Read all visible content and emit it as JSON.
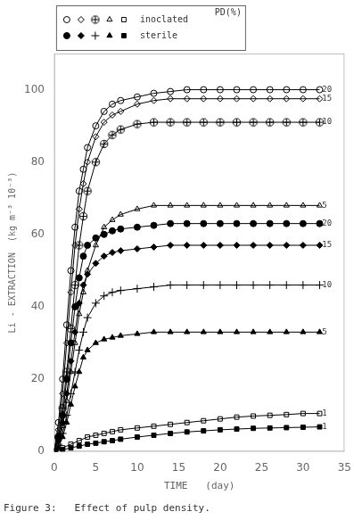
{
  "chart_data": {
    "type": "line",
    "xlabel": "TIME   (day)",
    "ylabel": "Li - EXTRACTION  (kg m⁻³ 10⁻³)",
    "caption": "Figure 3:   Effect of pulp density.",
    "xlim": [
      0,
      35
    ],
    "ylim": [
      0,
      110
    ],
    "xticks": [
      0,
      5,
      10,
      15,
      20,
      25,
      30,
      35
    ],
    "yticks": [
      0,
      20,
      40,
      60,
      80,
      100
    ],
    "grid": false,
    "legend": "upper left",
    "legend_title": "PD(%)",
    "color": "#000000",
    "series": [
      {
        "name": "inoclated",
        "marker": "circle-open",
        "x": [
          0,
          0.5,
          1,
          1.5,
          2,
          2.5,
          3,
          3.5,
          4,
          5,
          6,
          7,
          8,
          10,
          12,
          14,
          16,
          18,
          20,
          22,
          24,
          26,
          28,
          30,
          32
        ],
        "values": [
          0,
          8,
          20,
          35,
          50,
          62,
          72,
          78,
          84,
          90,
          94,
          96,
          97,
          98,
          99,
          99.5,
          100,
          100,
          100,
          100,
          100,
          100,
          100,
          100,
          100
        ]
      },
      {
        "name": "inoclated",
        "marker": "diamond-open",
        "x": [
          0,
          0.5,
          1,
          1.5,
          2,
          2.5,
          3,
          3.5,
          4,
          5,
          6,
          7,
          8,
          10,
          12,
          14,
          16,
          18,
          20,
          22,
          24,
          26,
          28,
          30,
          32
        ],
        "values": [
          0,
          6,
          16,
          30,
          44,
          57,
          67,
          74,
          80,
          87,
          91,
          93,
          94,
          96,
          97,
          97.5,
          97.5,
          97.5,
          97.5,
          97.5,
          97.5,
          97.5,
          97.5,
          97.5,
          97.5
        ]
      },
      {
        "name": "inoclated",
        "marker": "circle-plus",
        "x": [
          0,
          0.5,
          1,
          1.5,
          2,
          2.5,
          3,
          3.5,
          4,
          5,
          6,
          7,
          8,
          10,
          12,
          14,
          16,
          18,
          20,
          22,
          24,
          26,
          28,
          30,
          32
        ],
        "values": [
          0,
          4,
          12,
          22,
          34,
          46,
          57,
          65,
          72,
          80,
          85,
          87.5,
          89,
          90.5,
          91,
          91,
          91,
          91,
          91,
          91,
          91,
          91,
          91,
          91,
          91
        ]
      },
      {
        "name": "inoclated",
        "marker": "triangle-open",
        "x": [
          0,
          0.5,
          1,
          1.5,
          2,
          2.5,
          3,
          3.5,
          4,
          5,
          6,
          7,
          8,
          10,
          12,
          14,
          16,
          18,
          20,
          22,
          24,
          26,
          28,
          30,
          32
        ],
        "values": [
          0,
          2,
          7,
          14,
          22,
          30,
          38,
          44,
          50,
          57,
          62,
          64,
          65.5,
          67,
          68,
          68,
          68,
          68,
          68,
          68,
          68,
          68,
          68,
          68,
          68
        ]
      },
      {
        "name": "inoclated",
        "marker": "square-open",
        "x": [
          0,
          1,
          2,
          3,
          4,
          5,
          6,
          7,
          8,
          10,
          12,
          14,
          16,
          18,
          20,
          22,
          24,
          26,
          28,
          30,
          32
        ],
        "values": [
          0,
          1,
          2,
          3,
          4,
          4.5,
          5,
          5.5,
          6,
          6.5,
          7,
          7.5,
          8,
          8.5,
          9,
          9.5,
          9.8,
          10,
          10.2,
          10.5,
          10.5
        ]
      },
      {
        "name": "sterile",
        "marker": "circle-filled",
        "x": [
          0,
          0.5,
          1,
          1.5,
          2,
          2.5,
          3,
          3.5,
          4,
          5,
          6,
          7,
          8,
          10,
          12,
          14,
          16,
          18,
          20,
          22,
          24,
          26,
          28,
          30,
          32
        ],
        "values": [
          0,
          4,
          10,
          20,
          30,
          40,
          48,
          54,
          57,
          59,
          60,
          61,
          61.5,
          62,
          62.5,
          63,
          63,
          63,
          63,
          63,
          63,
          63,
          63,
          63,
          63
        ]
      },
      {
        "name": "sterile",
        "marker": "diamond-filled",
        "x": [
          0,
          0.5,
          1,
          1.5,
          2,
          2.5,
          3,
          3.5,
          4,
          5,
          6,
          7,
          8,
          10,
          12,
          14,
          16,
          18,
          20,
          22,
          24,
          26,
          28,
          30,
          32
        ],
        "values": [
          0,
          3,
          8,
          16,
          25,
          33,
          41,
          46,
          49,
          52,
          54,
          55,
          55.5,
          56,
          56.5,
          57,
          57,
          57,
          57,
          57,
          57,
          57,
          57,
          57,
          57
        ]
      },
      {
        "name": "sterile",
        "marker": "plus",
        "x": [
          0,
          0.5,
          1,
          1.5,
          2,
          2.5,
          3,
          3.5,
          4,
          5,
          6,
          7,
          8,
          10,
          12,
          14,
          16,
          18,
          20,
          22,
          24,
          26,
          28,
          30,
          32
        ],
        "values": [
          0,
          2,
          5,
          10,
          16,
          22,
          28,
          33,
          37,
          41,
          43,
          44,
          44.5,
          45,
          45.5,
          46,
          46,
          46,
          46,
          46,
          46,
          46,
          46,
          46,
          46
        ]
      },
      {
        "name": "sterile",
        "marker": "triangle-filled",
        "x": [
          0,
          0.5,
          1,
          1.5,
          2,
          2.5,
          3,
          3.5,
          4,
          5,
          6,
          7,
          8,
          10,
          12,
          14,
          16,
          18,
          20,
          22,
          24,
          26,
          28,
          30,
          32
        ],
        "values": [
          0,
          1,
          4,
          8,
          13,
          18,
          22,
          26,
          28,
          30,
          31,
          31.5,
          32,
          32.5,
          33,
          33,
          33,
          33,
          33,
          33,
          33,
          33,
          33,
          33,
          33
        ]
      },
      {
        "name": "sterile",
        "marker": "square-filled",
        "x": [
          0,
          1,
          2,
          3,
          4,
          5,
          6,
          7,
          8,
          10,
          12,
          14,
          16,
          18,
          20,
          22,
          24,
          26,
          28,
          30,
          32
        ],
        "values": [
          0,
          0.5,
          1,
          1.5,
          2,
          2.3,
          2.7,
          3,
          3.4,
          4,
          4.5,
          5,
          5.4,
          5.7,
          6,
          6.2,
          6.4,
          6.5,
          6.6,
          6.7,
          6.8
        ]
      }
    ],
    "annotations": [
      {
        "x": 32.3,
        "y": 100,
        "text": "20"
      },
      {
        "x": 32.3,
        "y": 97.5,
        "text": "15"
      },
      {
        "x": 32.3,
        "y": 91,
        "text": "10"
      },
      {
        "x": 32.3,
        "y": 63,
        "text": "20"
      },
      {
        "x": 32.3,
        "y": 57,
        "text": "15"
      },
      {
        "x": 32.3,
        "y": 68,
        "text": "5"
      },
      {
        "x": 32.3,
        "y": 46,
        "text": "10"
      },
      {
        "x": 32.3,
        "y": 33,
        "text": "5"
      },
      {
        "x": 32.3,
        "y": 10.5,
        "text": "1"
      },
      {
        "x": 32.3,
        "y": 6.8,
        "text": "1"
      }
    ]
  }
}
